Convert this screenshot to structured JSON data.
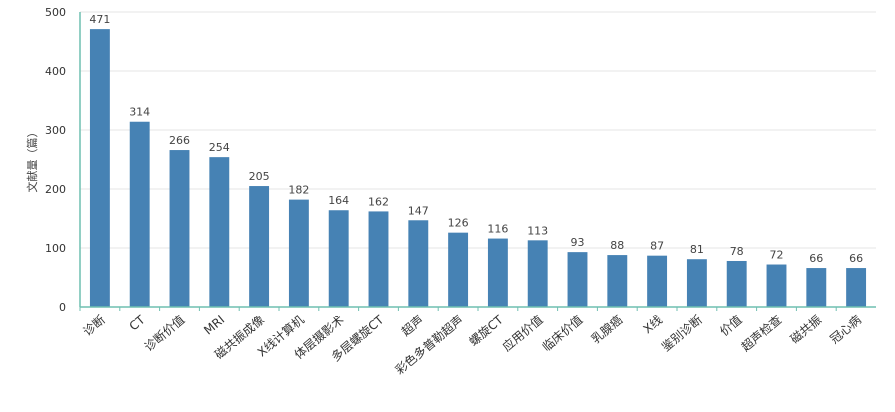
{
  "chart_data": {
    "type": "bar",
    "ylabel": "文献量（篇）",
    "ylim": [
      0,
      500
    ],
    "yticks": [
      0,
      100,
      200,
      300,
      400,
      500
    ],
    "grid": true,
    "bar_color": "#4682b4",
    "axis_color": "#6fbfb0",
    "categories": [
      "诊断",
      "CT",
      "诊断价值",
      "MRI",
      "磁共振成像",
      "X线计算机",
      "体层摄影术",
      "多层螺旋CT",
      "超声",
      "彩色多普勒超声",
      "螺旋CT",
      "应用价值",
      "临床价值",
      "乳腺癌",
      "X线",
      "鉴别诊断",
      "价值",
      "超声检查",
      "磁共振",
      "冠心病"
    ],
    "values": [
      471,
      314,
      266,
      254,
      205,
      182,
      164,
      162,
      147,
      126,
      116,
      113,
      93,
      88,
      87,
      81,
      78,
      72,
      66,
      66
    ]
  }
}
